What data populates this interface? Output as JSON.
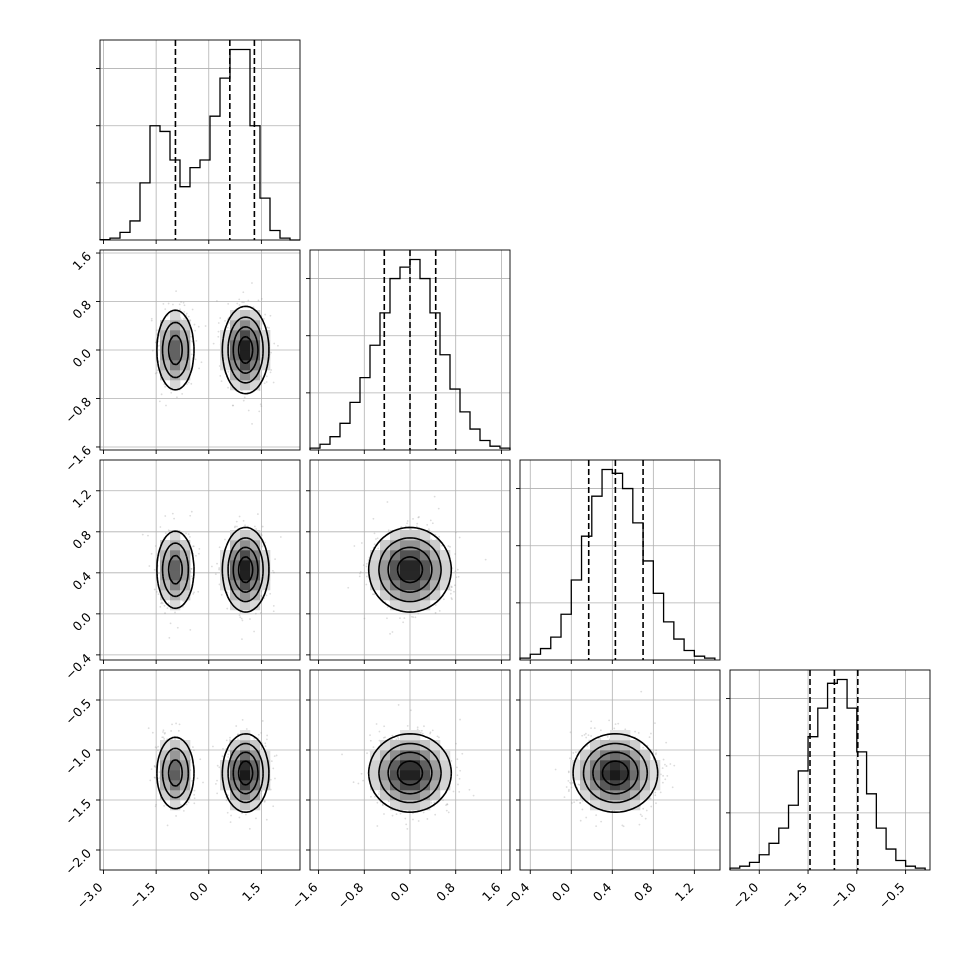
{
  "chart_data": {
    "type": "corner",
    "grid": true,
    "parameters": [
      {
        "name": "p0",
        "xlim": [
          -3.1,
          2.6
        ],
        "ticks": [
          -3.0,
          -1.5,
          0.0,
          1.5
        ],
        "tick_labels": [
          "−3.0",
          "−1.5",
          "0.0",
          "1.5"
        ],
        "quantiles": [
          -0.95,
          0.6,
          1.3
        ],
        "hist": {
          "bin_edges": [
            -3.1,
            -2.815,
            -2.53,
            -2.245,
            -1.96,
            -1.675,
            -1.39,
            -1.105,
            -0.82,
            -0.535,
            -0.25,
            0.035,
            0.32,
            0.605,
            0.89,
            1.175,
            1.46,
            1.745,
            2.03,
            2.315,
            2.6
          ],
          "counts": [
            0.002,
            0.01,
            0.04,
            0.1,
            0.3,
            0.6,
            0.57,
            0.42,
            0.28,
            0.38,
            0.42,
            0.65,
            0.85,
            1.0,
            1.0,
            0.6,
            0.22,
            0.05,
            0.01,
            0.0
          ]
        }
      },
      {
        "name": "p1",
        "xlim": [
          -1.75,
          1.75
        ],
        "ylim": [
          -1.65,
          1.65
        ],
        "ticks": [
          -1.6,
          -0.8,
          0.0,
          0.8,
          1.6
        ],
        "tick_labels": [
          "−1.6",
          "−0.8",
          "0.0",
          "0.8",
          "1.6"
        ],
        "quantiles": [
          -0.45,
          0.0,
          0.45
        ],
        "hist": {
          "bin_edges": [
            -1.75,
            -1.575,
            -1.4,
            -1.225,
            -1.05,
            -0.875,
            -0.7,
            -0.525,
            -0.35,
            -0.175,
            0.0,
            0.175,
            0.35,
            0.525,
            0.7,
            0.875,
            1.05,
            1.225,
            1.4,
            1.575,
            1.75
          ],
          "counts": [
            0.01,
            0.03,
            0.07,
            0.14,
            0.25,
            0.38,
            0.55,
            0.72,
            0.9,
            0.96,
            1.0,
            0.9,
            0.72,
            0.5,
            0.32,
            0.2,
            0.11,
            0.05,
            0.02,
            0.01
          ]
        }
      },
      {
        "name": "p2",
        "xlim": [
          -0.5,
          1.45
        ],
        "ylim": [
          -0.45,
          1.5
        ],
        "ticks": [
          -0.4,
          0.0,
          0.4,
          0.8,
          1.2
        ],
        "tick_labels": [
          "−0.4",
          "0.0",
          "0.4",
          "0.8",
          "1.2"
        ],
        "quantiles": [
          0.17,
          0.43,
          0.7
        ],
        "hist": {
          "bin_edges": [
            -0.5,
            -0.4,
            -0.3,
            -0.2,
            -0.1,
            0.0,
            0.1,
            0.2,
            0.3,
            0.4,
            0.5,
            0.6,
            0.7,
            0.8,
            0.9,
            1.0,
            1.1,
            1.2,
            1.3,
            1.4
          ],
          "counts": [
            0.01,
            0.03,
            0.06,
            0.12,
            0.24,
            0.42,
            0.65,
            0.86,
            1.0,
            0.98,
            0.9,
            0.72,
            0.52,
            0.35,
            0.2,
            0.11,
            0.05,
            0.02,
            0.01
          ]
        }
      },
      {
        "name": "p3",
        "xlim": [
          -2.3,
          -0.25
        ],
        "ylim": [
          -2.2,
          -0.2
        ],
        "ticks": [
          -2.0,
          -1.5,
          -1.0,
          -0.5
        ],
        "tick_labels": [
          "−2.0",
          "−1.5",
          "−1.0",
          "−0.5"
        ],
        "quantiles": [
          -1.48,
          -1.23,
          -0.99
        ],
        "hist": {
          "bin_edges": [
            -2.3,
            -2.2,
            -2.1,
            -2.0,
            -1.9,
            -1.8,
            -1.7,
            -1.6,
            -1.5,
            -1.4,
            -1.3,
            -1.2,
            -1.1,
            -1.0,
            -0.9,
            -0.8,
            -0.7,
            -0.6,
            -0.5,
            -0.4,
            -0.3
          ],
          "counts": [
            0.01,
            0.02,
            0.04,
            0.08,
            0.14,
            0.22,
            0.34,
            0.52,
            0.7,
            0.85,
            0.98,
            1.0,
            0.85,
            0.62,
            0.4,
            0.22,
            0.11,
            0.05,
            0.02,
            0.01
          ]
        }
      }
    ]
  }
}
